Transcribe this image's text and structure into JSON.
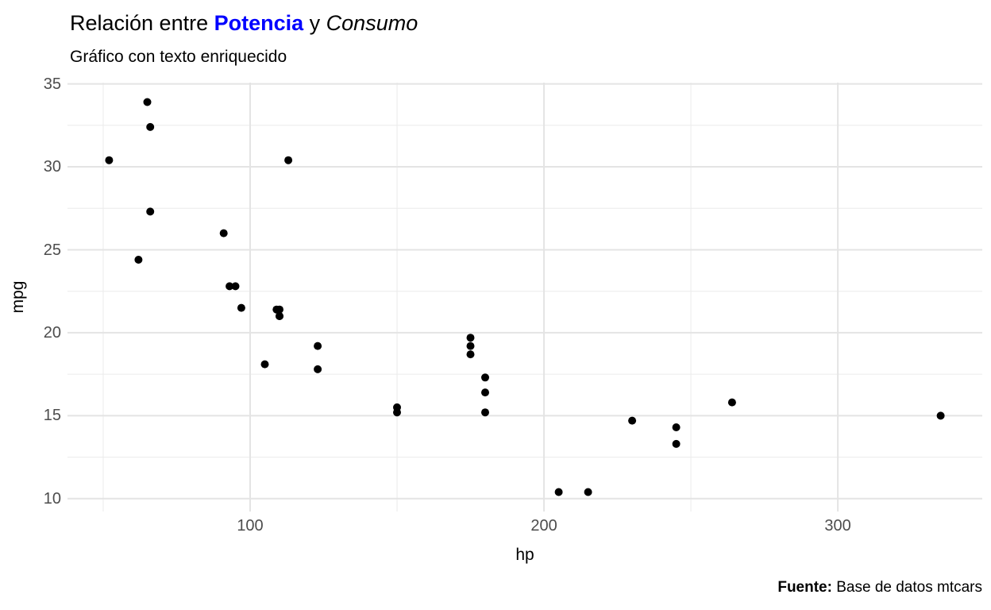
{
  "figure": {
    "title": {
      "part1": "Relación entre ",
      "part2_bold_blue": "Potencia",
      "part3": " y ",
      "part4_italic": "Consumo"
    },
    "subtitle": "Gráfico con texto enriquecido",
    "caption": {
      "bold": "Fuente:",
      "text": " Base de datos mtcars"
    }
  },
  "colors": {
    "background": "#ffffff",
    "accent_blue": "#0000ff",
    "title_text": "#000000",
    "tick_label": "#4d4d4d",
    "grid_major": "#e4e4e4",
    "grid_minor": "#ebebeb",
    "point": "#000000"
  },
  "chart_data": {
    "type": "scatter",
    "title": "Relación entre Potencia y Consumo",
    "subtitle": "Gráfico con texto enriquecido",
    "caption": "Fuente: Base de datos mtcars",
    "xlabel": "hp",
    "ylabel": "mpg",
    "xlim": [
      37.85,
      349.15
    ],
    "ylim": [
      9.225,
      35.075
    ],
    "x_ticks": [
      100,
      200,
      300
    ],
    "y_ticks": [
      10,
      15,
      20,
      25,
      30,
      35
    ],
    "x_minor_gridlines": [
      50,
      150,
      250
    ],
    "y_minor_gridlines": [
      12.5,
      17.5,
      22.5,
      27.5,
      32.5
    ],
    "grid": true,
    "legend": "none",
    "series": [
      {
        "name": "mtcars",
        "points": [
          [
            110,
            21.0
          ],
          [
            110,
            21.0
          ],
          [
            93,
            22.8
          ],
          [
            110,
            21.4
          ],
          [
            175,
            18.7
          ],
          [
            105,
            18.1
          ],
          [
            245,
            14.3
          ],
          [
            62,
            24.4
          ],
          [
            95,
            22.8
          ],
          [
            123,
            19.2
          ],
          [
            123,
            17.8
          ],
          [
            180,
            16.4
          ],
          [
            180,
            17.3
          ],
          [
            180,
            15.2
          ],
          [
            205,
            10.4
          ],
          [
            215,
            10.4
          ],
          [
            230,
            14.7
          ],
          [
            66,
            32.4
          ],
          [
            52,
            30.4
          ],
          [
            65,
            33.9
          ],
          [
            97,
            21.5
          ],
          [
            150,
            15.5
          ],
          [
            150,
            15.2
          ],
          [
            245,
            13.3
          ],
          [
            175,
            19.2
          ],
          [
            66,
            27.3
          ],
          [
            91,
            26.0
          ],
          [
            113,
            30.4
          ],
          [
            264,
            15.8
          ],
          [
            175,
            19.7
          ],
          [
            335,
            15.0
          ],
          [
            109,
            21.4
          ]
        ]
      }
    ]
  }
}
